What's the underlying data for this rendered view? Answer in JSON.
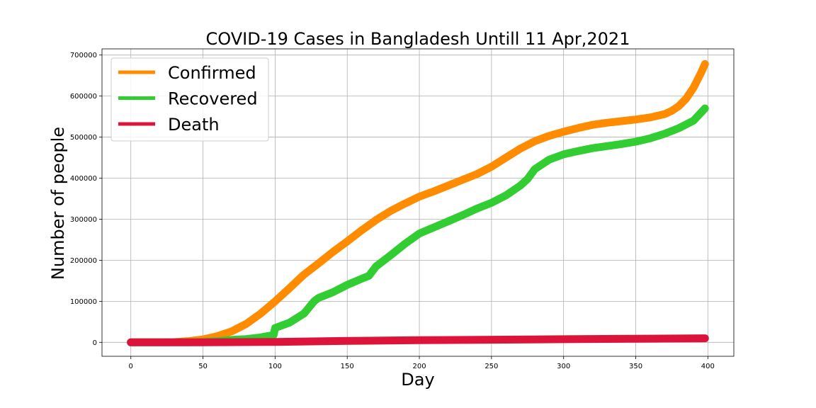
{
  "chart_data": {
    "type": "line",
    "title": "COVID-19 Cases in Bangladesh Untill 11 Apr,2021",
    "xlabel": "Day",
    "ylabel": "Number of people",
    "xlim": [
      -20,
      418
    ],
    "ylim": [
      -34000,
      715000
    ],
    "xticks": [
      0,
      50,
      100,
      150,
      200,
      250,
      300,
      350,
      400
    ],
    "yticks": [
      0,
      100000,
      200000,
      300000,
      400000,
      500000,
      600000,
      700000
    ],
    "grid": true,
    "legend_position": "top-left",
    "series": [
      {
        "name": "Confirmed",
        "color": "#ff8c00",
        "x": [
          0,
          20,
          30,
          40,
          50,
          60,
          70,
          80,
          90,
          100,
          110,
          120,
          130,
          140,
          150,
          160,
          170,
          180,
          190,
          200,
          210,
          220,
          230,
          240,
          250,
          260,
          270,
          280,
          290,
          300,
          310,
          320,
          330,
          340,
          350,
          360,
          370,
          375,
          380,
          385,
          390,
          395,
          398
        ],
        "y": [
          0,
          100,
          500,
          3000,
          7000,
          15000,
          27000,
          45000,
          70000,
          100000,
          132000,
          165000,
          192000,
          220000,
          246000,
          273000,
          298000,
          320000,
          338000,
          355000,
          368000,
          382000,
          396000,
          410000,
          428000,
          450000,
          472000,
          490000,
          503000,
          513000,
          522000,
          530000,
          535000,
          539000,
          543000,
          548000,
          556000,
          564000,
          576000,
          594000,
          620000,
          655000,
          678000
        ]
      },
      {
        "name": "Recovered",
        "color": "#32cd32",
        "x": [
          0,
          40,
          50,
          60,
          70,
          80,
          90,
          99,
          100,
          110,
          120,
          127,
          130,
          140,
          150,
          160,
          165,
          170,
          180,
          190,
          200,
          210,
          220,
          230,
          240,
          250,
          260,
          270,
          275,
          280,
          290,
          300,
          310,
          320,
          330,
          340,
          350,
          360,
          370,
          380,
          390,
          398
        ],
        "y": [
          0,
          0,
          1000,
          3000,
          6000,
          8000,
          12000,
          18000,
          35000,
          48000,
          70000,
          100000,
          108000,
          122000,
          140000,
          155000,
          162000,
          185000,
          212000,
          240000,
          265000,
          280000,
          295000,
          310000,
          326000,
          340000,
          358000,
          382000,
          398000,
          422000,
          445000,
          458000,
          466000,
          473000,
          478000,
          483000,
          489000,
          497000,
          508000,
          522000,
          540000,
          570000
        ]
      },
      {
        "name": "Death",
        "color": "#dc143c",
        "x": [
          0,
          50,
          100,
          150,
          200,
          250,
          300,
          350,
          398
        ],
        "y": [
          0,
          0,
          1000,
          3500,
          5200,
          6300,
          7600,
          8800,
          9800
        ]
      }
    ]
  }
}
